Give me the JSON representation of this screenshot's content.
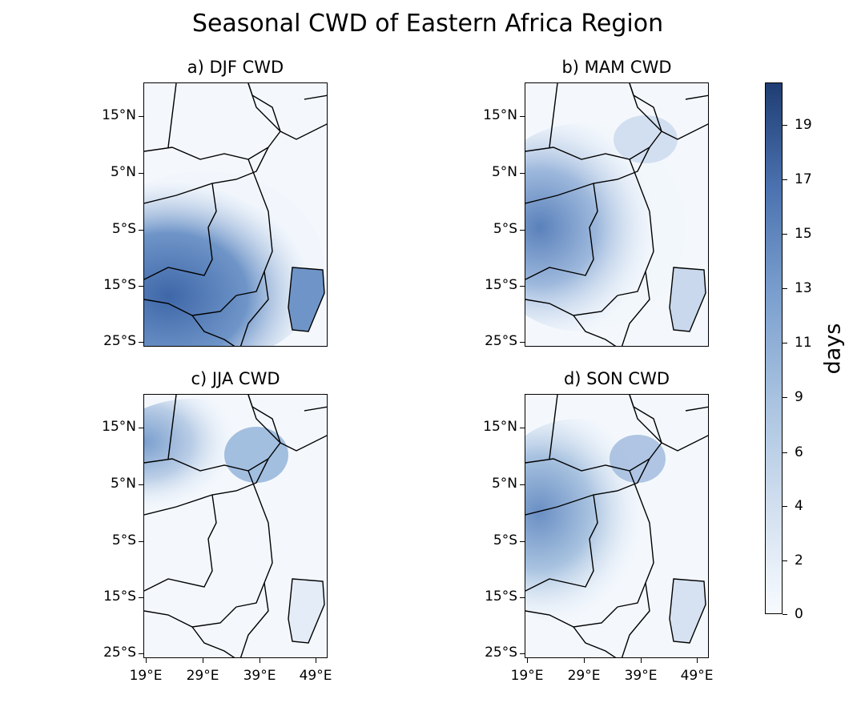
{
  "figure": {
    "title": "Seasonal CWD of Eastern Africa Region"
  },
  "panels": [
    {
      "title": "a) DJF CWD",
      "season": "DJF",
      "intensity": "high"
    },
    {
      "title": "b) MAM CWD",
      "season": "MAM",
      "intensity": "medium"
    },
    {
      "title": "c) JJA CWD",
      "season": "JJA",
      "intensity": "low"
    },
    {
      "title": "d) SON CWD",
      "season": "SON",
      "intensity": "medium-low"
    }
  ],
  "axes": {
    "lat_ticks": [
      "15°N",
      "5°N",
      "5°S",
      "15°S",
      "25°S"
    ],
    "lon_ticks": [
      "19°E",
      "29°E",
      "39°E",
      "49°E"
    ]
  },
  "colorbar": {
    "label": "days",
    "ticks": [
      "0",
      "2",
      "4",
      "6",
      "9",
      "11",
      "13",
      "15",
      "17",
      "19"
    ],
    "colormap": "Blues",
    "color_low": "#f7fbff",
    "color_high": "#1f3d73"
  }
}
